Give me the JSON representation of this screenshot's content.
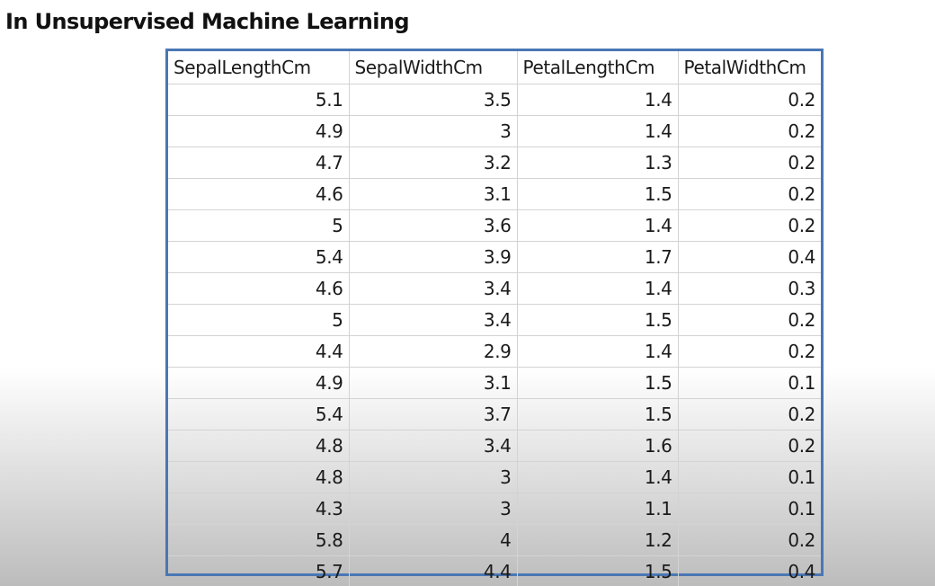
{
  "title": "In Unsupervised Machine Learning",
  "table": {
    "headers": [
      "SepalLengthCm",
      "SepalWidthCm",
      "PetalLengthCm",
      "PetalWidthCm"
    ],
    "rows": [
      [
        "5.1",
        "3.5",
        "1.4",
        "0.2"
      ],
      [
        "4.9",
        "3",
        "1.4",
        "0.2"
      ],
      [
        "4.7",
        "3.2",
        "1.3",
        "0.2"
      ],
      [
        "4.6",
        "3.1",
        "1.5",
        "0.2"
      ],
      [
        "5",
        "3.6",
        "1.4",
        "0.2"
      ],
      [
        "5.4",
        "3.9",
        "1.7",
        "0.4"
      ],
      [
        "4.6",
        "3.4",
        "1.4",
        "0.3"
      ],
      [
        "5",
        "3.4",
        "1.5",
        "0.2"
      ],
      [
        "4.4",
        "2.9",
        "1.4",
        "0.2"
      ],
      [
        "4.9",
        "3.1",
        "1.5",
        "0.1"
      ],
      [
        "5.4",
        "3.7",
        "1.5",
        "0.2"
      ],
      [
        "4.8",
        "3.4",
        "1.6",
        "0.2"
      ],
      [
        "4.8",
        "3",
        "1.4",
        "0.1"
      ],
      [
        "4.3",
        "3",
        "1.1",
        "0.1"
      ],
      [
        "5.8",
        "4",
        "1.2",
        "0.2"
      ],
      [
        "5.7",
        "4.4",
        "1.5",
        "0.4"
      ]
    ]
  },
  "colors": {
    "table_border": "#4a77b4",
    "grid_line": "#d3d3d3",
    "text": "#1a1a1a"
  }
}
